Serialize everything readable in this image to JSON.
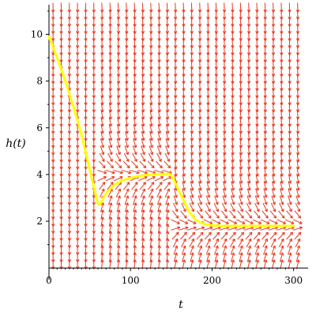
{
  "chart_data": {
    "type": "line",
    "title": "",
    "xlabel": "t",
    "ylabel": "h(t)",
    "xlim": [
      0,
      310
    ],
    "ylim": [
      -0.5,
      11.3
    ],
    "x_ticks": [
      0,
      100,
      200,
      300
    ],
    "y_ticks": [
      2,
      4,
      6,
      8,
      10
    ],
    "grid": false,
    "legend": "none",
    "colors": {
      "field": "#e8381e",
      "solution": "#ffff00",
      "axes": "#000000"
    },
    "direction_field": {
      "x_range": [
        0,
        310
      ],
      "y_range": [
        0,
        11.3
      ],
      "columns": 31,
      "rows": 37
    },
    "series": [
      {
        "x": [
          0,
          10,
          20,
          30,
          40,
          50,
          60,
          62,
          66,
          70,
          80,
          90,
          100,
          110,
          120,
          130,
          140,
          148,
          152,
          158,
          165,
          172,
          180,
          190,
          200,
          210,
          220,
          240,
          260,
          280,
          300
        ],
        "y": [
          9.9,
          9.0,
          8.0,
          6.9,
          5.7,
          4.2,
          2.75,
          2.7,
          2.95,
          3.2,
          3.55,
          3.75,
          3.85,
          3.93,
          3.98,
          4.0,
          4.02,
          4.03,
          3.85,
          3.4,
          2.9,
          2.4,
          2.05,
          1.88,
          1.82,
          1.8,
          1.8,
          1.8,
          1.8,
          1.8,
          1.8
        ]
      }
    ]
  }
}
